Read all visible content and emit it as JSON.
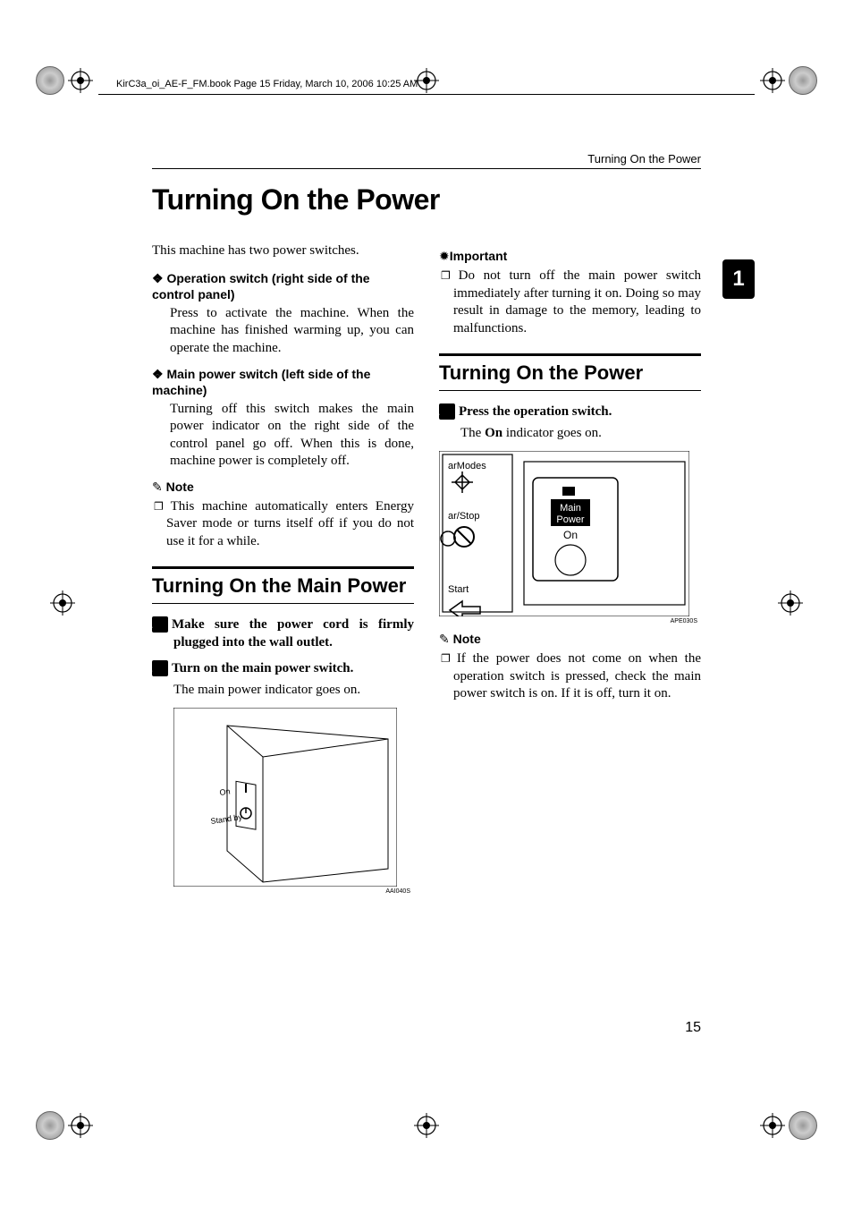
{
  "header_text": "KirC3a_oi_AE-F_FM.book  Page 15  Friday, March 10, 2006  10:25 AM",
  "running_head": "Turning On the Power",
  "main_title": "Turning On the Power",
  "side_tab": "1",
  "page_number": "15",
  "intro": "This machine has two power switches.",
  "bullets": [
    {
      "head": "Operation switch (right side of the control panel)",
      "body": "Press to activate the machine. When the machine has finished warming up, you can operate the machine."
    },
    {
      "head": "Main power switch (left side of the machine)",
      "body": "Turning off this switch makes the main power indicator on the right side of the control panel go off. When this is done, machine power is completely off."
    }
  ],
  "note1_head": "Note",
  "note1_body": "This machine automatically enters Energy Saver mode or turns itself off if you do not use it for a while.",
  "section1": {
    "title": "Turning On the Main Power",
    "steps": [
      {
        "num": "1",
        "text": "Make sure the power cord is firmly plugged into the wall outlet."
      },
      {
        "num": "2",
        "text": "Turn on the main power switch.",
        "follow": "The main power indicator goes on."
      }
    ],
    "fig_caption": "AAI040S",
    "fig_labels": {
      "on": "On",
      "standby": "Stand by"
    }
  },
  "important_head": "Important",
  "important_body": "Do not turn off the main power switch immediately after turning it on. Doing so may result in damage to the memory, leading to malfunctions.",
  "section2": {
    "title": "Turning On the Power",
    "steps": [
      {
        "num": "1",
        "text": "Press the operation switch.",
        "follow_html": "The <b>On</b> indicator goes on."
      }
    ],
    "fig_caption": "APE030S",
    "panel_labels": {
      "modes": "arModes",
      "stop": "ar/Stop",
      "start": "Start",
      "main": "Main",
      "power": "Power",
      "on": "On"
    }
  },
  "note2_head": "Note",
  "note2_body": "If the power does not come on when the operation switch is pressed, check the main power switch is on. If it is off, turn it on.",
  "colors": {
    "text": "#000000",
    "bg": "#ffffff",
    "tab_bg": "#000000",
    "tab_fg": "#ffffff"
  }
}
